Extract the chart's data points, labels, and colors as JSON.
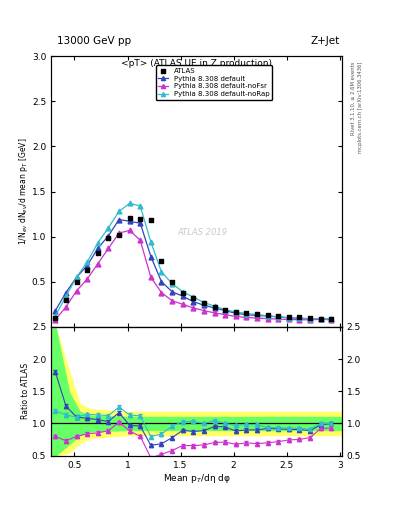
{
  "title_top": "13000 GeV pp",
  "title_right": "Z+Jet",
  "plot_title": "<pT> (ATLAS UE in Z production)",
  "ylabel_main": "1/N$_{ev}$ dN$_{ev}$/d mean p$_T$ [GeV]",
  "ylabel_ratio": "Ratio to ATLAS",
  "xlabel": "Mean p$_T$/dη dφ",
  "right_label_top": "Rivet 3.1.10, ≥ 2.6M events",
  "right_label_bottom": "mcplots.cern.ch [arXiv:1306.3436]",
  "watermark": "ATLAS 2019",
  "ylim_main": [
    0,
    3
  ],
  "ylim_ratio": [
    0.5,
    2.5
  ],
  "yticks_main": [
    0.5,
    1.0,
    1.5,
    2.0,
    2.5,
    3.0
  ],
  "yticks_ratio": [
    0.5,
    1.0,
    1.5,
    2.0,
    2.5
  ],
  "atlas_x": [
    0.32,
    0.42,
    0.52,
    0.62,
    0.72,
    0.82,
    0.92,
    1.02,
    1.12,
    1.22,
    1.32,
    1.42,
    1.52,
    1.62,
    1.72,
    1.82,
    1.92,
    2.02,
    2.12,
    2.22,
    2.32,
    2.42,
    2.52,
    2.62,
    2.72,
    2.82,
    2.92
  ],
  "atlas_y": [
    0.1,
    0.3,
    0.5,
    0.63,
    0.82,
    0.98,
    1.02,
    1.21,
    1.2,
    1.18,
    0.73,
    0.5,
    0.38,
    0.32,
    0.27,
    0.22,
    0.19,
    0.17,
    0.15,
    0.14,
    0.13,
    0.12,
    0.11,
    0.105,
    0.1,
    0.09,
    0.085
  ],
  "py_default_x": [
    0.32,
    0.42,
    0.52,
    0.62,
    0.72,
    0.82,
    0.92,
    1.02,
    1.12,
    1.22,
    1.32,
    1.42,
    1.52,
    1.62,
    1.72,
    1.82,
    1.92,
    2.02,
    2.12,
    2.22,
    2.32,
    2.42,
    2.52,
    2.62,
    2.72,
    2.82,
    2.92
  ],
  "py_default_y": [
    0.18,
    0.38,
    0.55,
    0.68,
    0.87,
    1.01,
    1.19,
    1.17,
    1.15,
    0.78,
    0.5,
    0.39,
    0.34,
    0.28,
    0.24,
    0.21,
    0.18,
    0.15,
    0.135,
    0.126,
    0.12,
    0.11,
    0.1,
    0.095,
    0.089,
    0.088,
    0.085
  ],
  "py_default_color": "#3344bb",
  "py_default_label": "Pythia 8.308 default",
  "py_nofsr_x": [
    0.32,
    0.42,
    0.52,
    0.62,
    0.72,
    0.82,
    0.92,
    1.02,
    1.12,
    1.22,
    1.32,
    1.42,
    1.52,
    1.62,
    1.72,
    1.82,
    1.92,
    2.02,
    2.12,
    2.22,
    2.32,
    2.42,
    2.52,
    2.62,
    2.72,
    2.82,
    2.92
  ],
  "py_nofsr_y": [
    0.08,
    0.22,
    0.4,
    0.53,
    0.7,
    0.87,
    1.04,
    1.07,
    0.96,
    0.55,
    0.38,
    0.29,
    0.25,
    0.21,
    0.18,
    0.155,
    0.135,
    0.115,
    0.105,
    0.096,
    0.091,
    0.086,
    0.082,
    0.079,
    0.078,
    0.083,
    0.079
  ],
  "py_nofsr_color": "#cc33cc",
  "py_nofsr_label": "Pythia 8.308 default-noFsr",
  "py_norap_x": [
    0.32,
    0.42,
    0.52,
    0.62,
    0.72,
    0.82,
    0.92,
    1.02,
    1.12,
    1.22,
    1.32,
    1.42,
    1.52,
    1.62,
    1.72,
    1.82,
    1.92,
    2.02,
    2.12,
    2.22,
    2.32,
    2.42,
    2.52,
    2.62,
    2.72,
    2.82,
    2.92
  ],
  "py_norap_y": [
    0.12,
    0.34,
    0.55,
    0.72,
    0.93,
    1.1,
    1.28,
    1.37,
    1.34,
    0.94,
    0.61,
    0.48,
    0.39,
    0.33,
    0.27,
    0.23,
    0.19,
    0.165,
    0.148,
    0.137,
    0.122,
    0.112,
    0.102,
    0.097,
    0.091,
    0.09,
    0.085
  ],
  "py_norap_color": "#33bbcc",
  "py_norap_label": "Pythia 8.308 default-noRap",
  "ratio_default_y": [
    1.8,
    1.27,
    1.1,
    1.08,
    1.06,
    1.03,
    1.17,
    0.97,
    0.96,
    0.66,
    0.685,
    0.78,
    0.895,
    0.875,
    0.889,
    0.955,
    0.947,
    0.882,
    0.9,
    0.9,
    0.923,
    0.917,
    0.909,
    0.905,
    0.89,
    0.978,
    1.0
  ],
  "ratio_nofsr_y": [
    0.8,
    0.73,
    0.8,
    0.84,
    0.854,
    0.888,
    1.02,
    0.884,
    0.8,
    0.466,
    0.521,
    0.58,
    0.658,
    0.656,
    0.667,
    0.705,
    0.711,
    0.676,
    0.7,
    0.686,
    0.7,
    0.717,
    0.745,
    0.752,
    0.78,
    0.922,
    0.929
  ],
  "ratio_norap_y": [
    1.2,
    1.13,
    1.1,
    1.14,
    1.134,
    1.122,
    1.255,
    1.132,
    1.117,
    0.797,
    0.836,
    0.96,
    1.026,
    1.031,
    1.0,
    1.045,
    1.0,
    0.971,
    0.987,
    0.979,
    0.938,
    0.933,
    0.927,
    0.924,
    0.91,
    1.0,
    1.0
  ],
  "bg_color": "#ffffff"
}
